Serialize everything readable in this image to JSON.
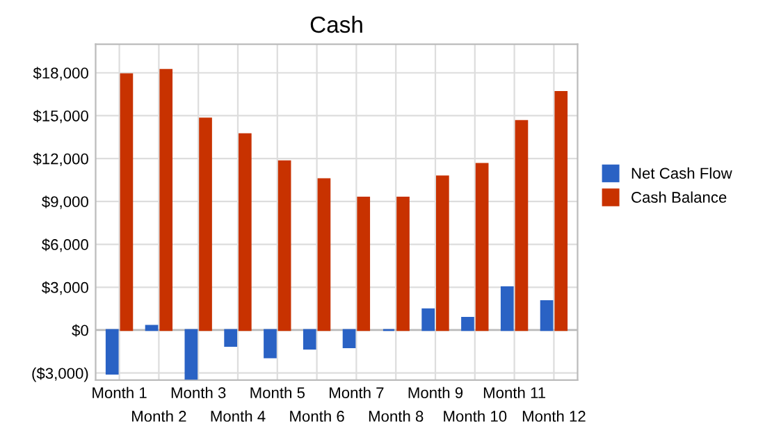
{
  "chart_data": {
    "type": "bar",
    "title": "Cash",
    "categories": [
      "Month 1",
      "Month 2",
      "Month 3",
      "Month 4",
      "Month 5",
      "Month 6",
      "Month 7",
      "Month 8",
      "Month 9",
      "Month 10",
      "Month 11",
      "Month 12"
    ],
    "series": [
      {
        "name": "Net Cash Flow",
        "color": "#2a62c4",
        "values": [
          -3050,
          300,
          -3400,
          -1100,
          -1900,
          -1300,
          -1200,
          0,
          1450,
          850,
          3000,
          2020
        ]
      },
      {
        "name": "Cash Balance",
        "color": "#c83200",
        "values": [
          17900,
          18200,
          14800,
          13700,
          11800,
          10550,
          9270,
          9270,
          10750,
          11620,
          14630,
          16650
        ]
      }
    ],
    "ylim": [
      -3500,
      20000
    ],
    "yticks": [
      {
        "value": -3000,
        "label": "($3,000)"
      },
      {
        "value": 0,
        "label": "$0"
      },
      {
        "value": 3000,
        "label": "$3,000"
      },
      {
        "value": 6000,
        "label": "$6,000"
      },
      {
        "value": 9000,
        "label": "$9,000"
      },
      {
        "value": 12000,
        "label": "$12,000"
      },
      {
        "value": 15000,
        "label": "$15,000"
      },
      {
        "value": 18000,
        "label": "$18,000"
      }
    ],
    "grid": true,
    "legend": "right"
  }
}
